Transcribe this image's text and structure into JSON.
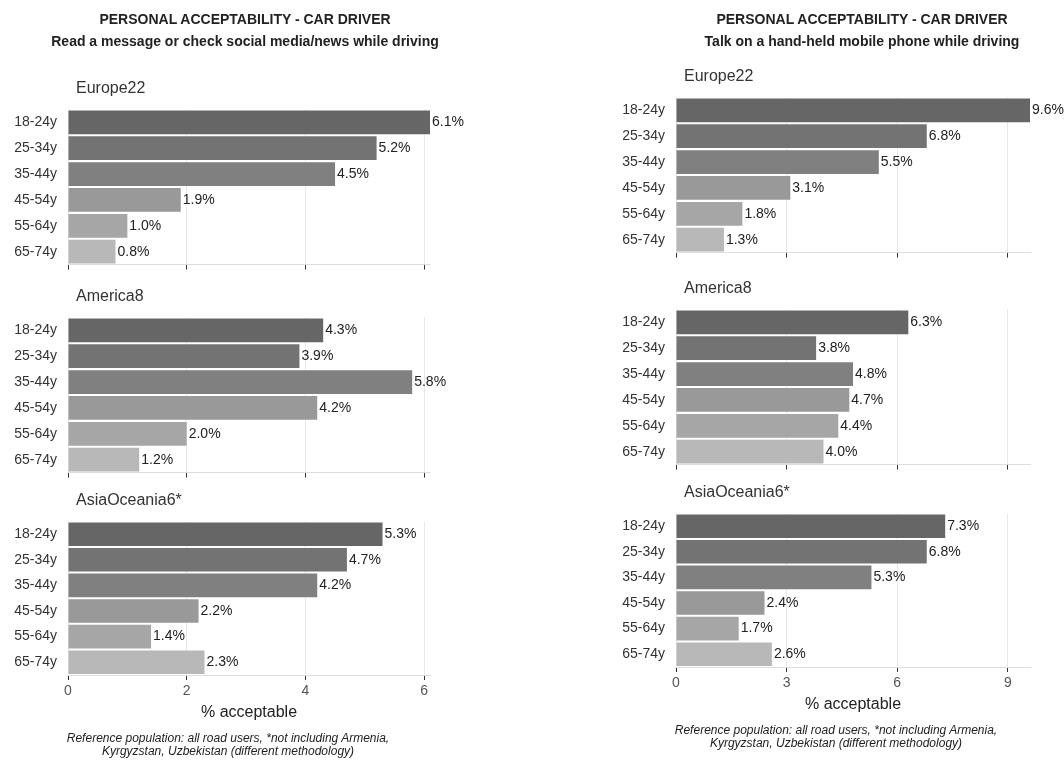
{
  "chart_data": [
    {
      "type": "other",
      "title": "PERSONAL ACCEPTABILITY - CAR DRIVER",
      "subtitle": "Read a message or check social media/news while driving"
    },
    {
      "type": "bar",
      "orientation": "horizontal",
      "title": "Europe22",
      "categories": [
        "18-24y",
        "25-34y",
        "35-44y",
        "45-54y",
        "55-64y",
        "65-74y"
      ],
      "values": [
        6.1,
        5.2,
        4.5,
        1.9,
        1.0,
        0.8
      ],
      "value_labels": [
        "6.1%",
        "5.2%",
        "4.5%",
        "1.9%",
        "1.0%",
        "0.8%"
      ],
      "colors": [
        "#666666",
        "#737373",
        "#808080",
        "#999999",
        "#a6a6a6",
        "#b8b8b8"
      ],
      "xlim": [
        0,
        6.1
      ],
      "xticks": [
        0,
        2,
        4,
        6
      ],
      "tick_labels": "y",
      "grid": "x"
    },
    {
      "type": "bar",
      "orientation": "horizontal",
      "title": "America8",
      "categories": [
        "18-24y",
        "25-34y",
        "35-44y",
        "45-54y",
        "55-64y",
        "65-74y"
      ],
      "values": [
        4.3,
        3.9,
        5.8,
        4.2,
        2.0,
        1.2
      ],
      "value_labels": [
        "4.3%",
        "3.9%",
        "5.8%",
        "4.2%",
        "2.0%",
        "1.2%"
      ],
      "colors": [
        "#666666",
        "#737373",
        "#808080",
        "#999999",
        "#a6a6a6",
        "#b8b8b8"
      ],
      "xlim": [
        0,
        6.1
      ],
      "xticks": [
        0,
        2,
        4,
        6
      ],
      "tick_labels": "y",
      "grid": "x"
    },
    {
      "type": "bar",
      "orientation": "horizontal",
      "title": "AsiaOceania6*",
      "categories": [
        "18-24y",
        "25-34y",
        "35-44y",
        "45-54y",
        "55-64y",
        "65-74y"
      ],
      "values": [
        5.3,
        4.7,
        4.2,
        2.2,
        1.4,
        2.3
      ],
      "value_labels": [
        "5.3%",
        "4.7%",
        "4.2%",
        "2.2%",
        "1.4%",
        "2.3%"
      ],
      "colors": [
        "#666666",
        "#737373",
        "#808080",
        "#999999",
        "#a6a6a6",
        "#b8b8b8"
      ],
      "xlim": [
        0,
        6.1
      ],
      "xticks": [
        0,
        2,
        4,
        6
      ],
      "grid": "x",
      "xlabel": "% acceptable",
      "annotations": [
        "Reference population: all road users, *not including Armenia, Kyrgyzstan, Uzbekistan (different methodology)"
      ]
    },
    {
      "type": "other",
      "title": "PERSONAL ACCEPTABILITY - CAR DRIVER",
      "subtitle": "Talk on a hand-held mobile phone while driving"
    },
    {
      "type": "bar",
      "orientation": "horizontal",
      "title": "Europe22",
      "categories": [
        "18-24y",
        "25-34y",
        "35-44y",
        "45-54y",
        "55-64y",
        "65-74y"
      ],
      "values": [
        9.6,
        6.8,
        5.5,
        3.1,
        1.8,
        1.3
      ],
      "value_labels": [
        "9.6%",
        "6.8%",
        "5.5%",
        "3.1%",
        "1.8%",
        "1.3%"
      ],
      "colors": [
        "#666666",
        "#737373",
        "#808080",
        "#999999",
        "#a6a6a6",
        "#b8b8b8"
      ],
      "xlim": [
        0,
        9.6
      ],
      "xticks": [
        0,
        3,
        6,
        9
      ],
      "tick_labels": "y",
      "grid": "x"
    },
    {
      "type": "bar",
      "orientation": "horizontal",
      "title": "America8",
      "categories": [
        "18-24y",
        "25-34y",
        "35-44y",
        "45-54y",
        "55-64y",
        "65-74y"
      ],
      "values": [
        6.3,
        3.8,
        4.8,
        4.7,
        4.4,
        4.0
      ],
      "value_labels": [
        "6.3%",
        "3.8%",
        "4.8%",
        "4.7%",
        "4.4%",
        "4.0%"
      ],
      "colors": [
        "#666666",
        "#737373",
        "#808080",
        "#999999",
        "#a6a6a6",
        "#b8b8b8"
      ],
      "xlim": [
        0,
        9.6
      ],
      "xticks": [
        0,
        3,
        6,
        9
      ],
      "tick_labels": "y",
      "grid": "x"
    },
    {
      "type": "bar",
      "orientation": "horizontal",
      "title": "AsiaOceania6*",
      "categories": [
        "18-24y",
        "25-34y",
        "35-44y",
        "45-54y",
        "55-64y",
        "65-74y"
      ],
      "values": [
        7.3,
        6.8,
        5.3,
        2.4,
        1.7,
        2.6
      ],
      "value_labels": [
        "7.3%",
        "6.8%",
        "5.3%",
        "2.4%",
        "1.7%",
        "2.6%"
      ],
      "colors": [
        "#666666",
        "#737373",
        "#808080",
        "#999999",
        "#a6a6a6",
        "#b8b8b8"
      ],
      "xlim": [
        0,
        9.6
      ],
      "xticks": [
        0,
        3,
        6,
        9
      ],
      "grid": "x",
      "xlabel": "% acceptable",
      "annotations": [
        "Reference population: all road users, *not including Armenia, Kyrgyzstan, Uzbekistan (different methodology)"
      ]
    }
  ]
}
